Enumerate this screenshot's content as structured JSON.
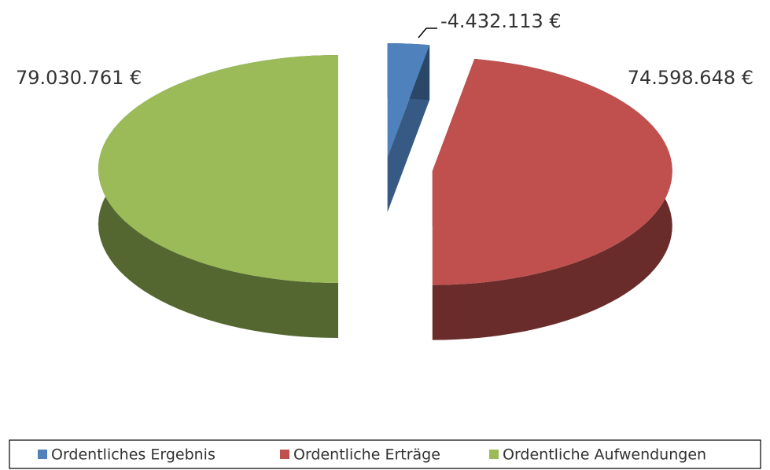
{
  "chart_data": {
    "type": "pie3d",
    "categories": [
      "Ordentliches Ergebnis",
      "Ordentliche Erträge",
      "Ordentliche Aufwendungen"
    ],
    "values": [
      -4432113,
      74598648,
      79030761
    ],
    "value_labels": [
      "-4.432.113 €",
      "74.598.648 €",
      "79.030.761 €"
    ],
    "colors": [
      "#4f81bd",
      "#c0504d",
      "#9bbb59"
    ],
    "legend": "bottom"
  }
}
